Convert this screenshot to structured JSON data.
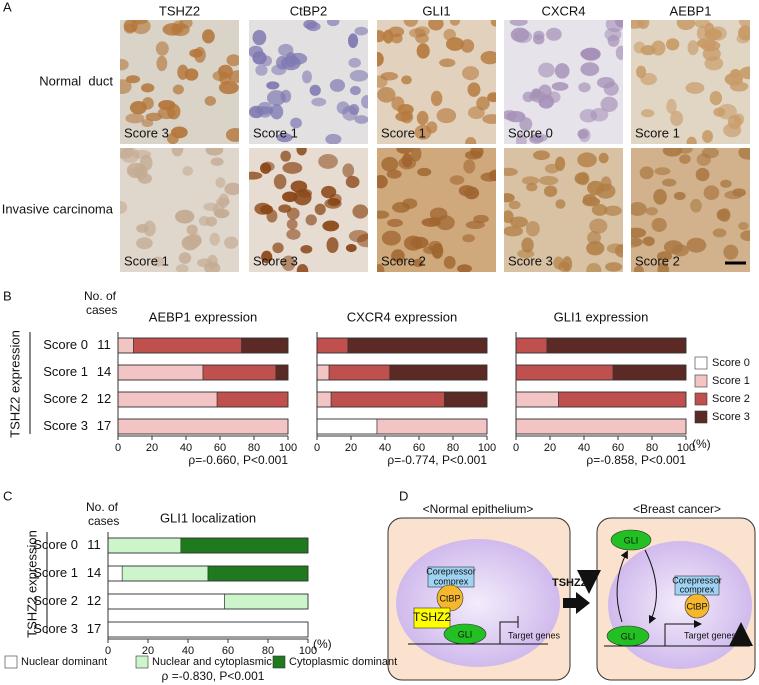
{
  "panel_a": {
    "label": "A",
    "columns": [
      "TSHZ2",
      "CtBP2",
      "GLI1",
      "CXCR4",
      "AEBP1"
    ],
    "rows": [
      {
        "label": "Normal  duct",
        "scores": [
          "Score 3",
          "Score 1",
          "Score 1",
          "Score 0",
          "Score 1"
        ]
      },
      {
        "label": "Invasive carcinoma",
        "scores": [
          "Score 1",
          "Score 3",
          "Score 2",
          "Score 3",
          "Score 2"
        ]
      }
    ]
  },
  "panel_b": {
    "label": "B",
    "cases_header": [
      "No. of",
      "cases"
    ],
    "y_label": "TSHZ2 expression",
    "cases": [
      11,
      14,
      12,
      17
    ],
    "x_unit": "(%)"
  },
  "panel_c": {
    "label": "C",
    "cases_header": [
      "No. of",
      "cases"
    ],
    "y_label": "TSHZ2 expression",
    "cases": [
      11,
      14,
      12,
      17
    ],
    "x_unit": "(%)"
  },
  "chart_data": [
    {
      "type": "bar",
      "title": "AEBP1 expression",
      "categories": [
        "Score 0",
        "Score 1",
        "Score 2",
        "Score 3"
      ],
      "series": [
        {
          "name": "Score 0",
          "color": "#ffffff",
          "values": [
            0,
            0,
            0,
            0
          ]
        },
        {
          "name": "Score 1",
          "color": "#f2c4c4",
          "values": [
            9.1,
            50,
            58.3,
            100
          ]
        },
        {
          "name": "Score 2",
          "color": "#c0504d",
          "values": [
            63.6,
            42.9,
            41.7,
            0
          ]
        },
        {
          "name": "Score 3",
          "color": "#5c2a24",
          "values": [
            27.3,
            7.1,
            0,
            0
          ]
        }
      ],
      "xlim": [
        0,
        100
      ],
      "xticks": [
        0,
        20,
        40,
        60,
        80,
        100
      ],
      "annotation": "ρ=-0.660, P<0.001"
    },
    {
      "type": "bar",
      "title": "CXCR4 expression",
      "categories": [
        "Score 0",
        "Score 1",
        "Score 2",
        "Score 3"
      ],
      "series": [
        {
          "name": "Score 0",
          "color": "#ffffff",
          "values": [
            0,
            0,
            0,
            35.3
          ]
        },
        {
          "name": "Score 1",
          "color": "#f2c4c4",
          "values": [
            0,
            7.1,
            8.3,
            64.7
          ]
        },
        {
          "name": "Score 2",
          "color": "#c0504d",
          "values": [
            18.2,
            35.7,
            66.7,
            0
          ]
        },
        {
          "name": "Score 3",
          "color": "#5c2a24",
          "values": [
            81.8,
            57.1,
            25,
            0
          ]
        }
      ],
      "xlim": [
        0,
        100
      ],
      "xticks": [
        0,
        20,
        40,
        60,
        80,
        100
      ],
      "annotation": "ρ=-0.774, P<0.001"
    },
    {
      "type": "bar",
      "title": "GLI1 expression",
      "categories": [
        "Score 0",
        "Score 1",
        "Score 2",
        "Score 3"
      ],
      "series": [
        {
          "name": "Score 0",
          "color": "#ffffff",
          "values": [
            0,
            0,
            0,
            0
          ]
        },
        {
          "name": "Score 1",
          "color": "#f2c4c4",
          "values": [
            0,
            0,
            25,
            100
          ]
        },
        {
          "name": "Score 2",
          "color": "#c0504d",
          "values": [
            18.2,
            57.1,
            75,
            0
          ]
        },
        {
          "name": "Score 3",
          "color": "#5c2a24",
          "values": [
            81.8,
            42.9,
            0,
            0
          ]
        }
      ],
      "xlim": [
        0,
        100
      ],
      "xticks": [
        0,
        20,
        40,
        60,
        80,
        100
      ],
      "annotation": "ρ=-0.858, P<0.001",
      "legend": "right"
    },
    {
      "type": "bar",
      "title": "GLI1 localization",
      "categories": [
        "Score 0",
        "Score 1",
        "Score 2",
        "Score 3"
      ],
      "series": [
        {
          "name": "Nuclear dominant",
          "color": "#ffffff",
          "values": [
            0,
            7.1,
            58.3,
            100
          ]
        },
        {
          "name": "Nuclear and cytoplasmic",
          "color": "#ccf5cc",
          "values": [
            36.4,
            42.9,
            41.7,
            0
          ]
        },
        {
          "name": "Cytoplasmic dominant",
          "color": "#1f7a1f",
          "values": [
            63.6,
            50,
            0,
            0
          ]
        }
      ],
      "xlim": [
        0,
        100
      ],
      "xticks": [
        0,
        20,
        40,
        60,
        80,
        100
      ],
      "annotation": "ρ =-0.830, P<0.001",
      "legend": "bottom"
    }
  ],
  "panel_d": {
    "label": "D",
    "left_title": "<Normal epithelium>",
    "right_title": "<Breast cancer>",
    "arrow_label": "TSHZ2",
    "left": {
      "corepressor": [
        "Corepressor",
        "comprex"
      ],
      "ctbp": "CtBP",
      "tshz2": "TSHZ2",
      "gli": "GLI",
      "target": "Target genes"
    },
    "right": {
      "gli_top": "GLI",
      "corepressor": [
        "Corepressor",
        "comprex"
      ],
      "ctbp": "CtBP",
      "gli": "GLI",
      "target": "Target genes"
    }
  }
}
